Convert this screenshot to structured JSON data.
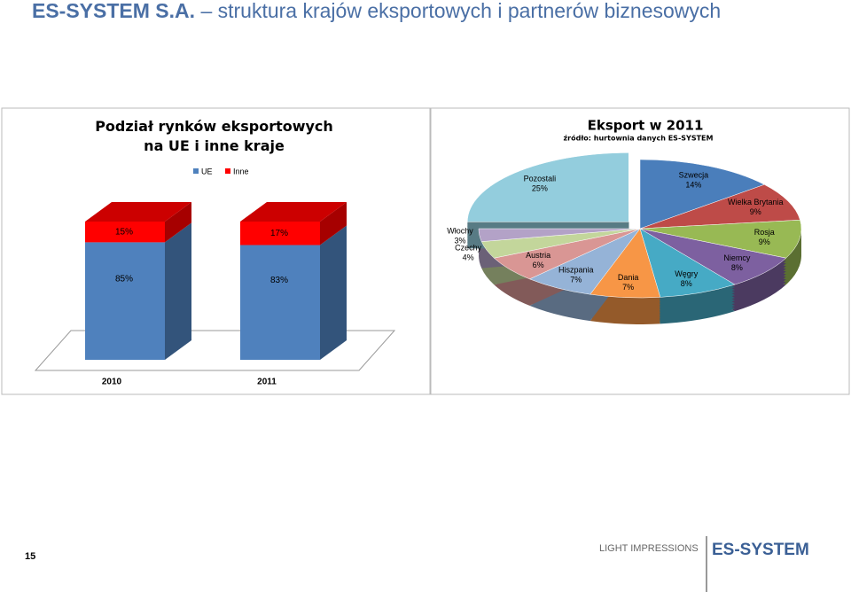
{
  "header": {
    "title_prefix": "ES-SYSTEM S.A.",
    "title": "– struktura krajów eksportowych i partnerów biznesowych"
  },
  "chart_data": [
    {
      "type": "bar",
      "stacked": true,
      "title": "Podział rynków eksportowych na UE i inne kraje",
      "categories": [
        "2010",
        "2011"
      ],
      "legend": "top",
      "series": [
        {
          "name": "UE",
          "color": "#4f81bd",
          "values": [
            85,
            83
          ],
          "value_labels": [
            "85%",
            "83%"
          ]
        },
        {
          "name": "Inne",
          "color": "#ff0000",
          "values": [
            15,
            17
          ],
          "value_labels": [
            "15%",
            "17%"
          ]
        }
      ]
    },
    {
      "type": "pie",
      "title": "Eksport w 2011",
      "subtitle": "źródło: hurtownia danych ES-SYSTEM",
      "categories": [
        "Szwecja",
        "Wielka Brytania",
        "Rosja",
        "Niemcy",
        "Węgry",
        "Dania",
        "Hiszpania",
        "Austria",
        "Czechy",
        "Włochy",
        "Pozostali"
      ],
      "values": [
        14,
        9,
        9,
        8,
        8,
        7,
        7,
        6,
        4,
        3,
        25
      ],
      "value_labels": [
        "14%",
        "9%",
        "9%",
        "8%",
        "8%",
        "7%",
        "7%",
        "6%",
        "4%",
        "3%",
        "25%"
      ],
      "colors": [
        "#4a7ebb",
        "#be4b48",
        "#98b954",
        "#7d60a0",
        "#46aac5",
        "#f79646",
        "#95b3d7",
        "#d99694",
        "#c3d69b",
        "#b3a2c7",
        "#93cddd"
      ],
      "exploded": "Pozostali"
    }
  ],
  "footer": {
    "page": "15",
    "brand": "LIGHT IMPRESSIONS",
    "logo": "ES-SYSTEM"
  }
}
